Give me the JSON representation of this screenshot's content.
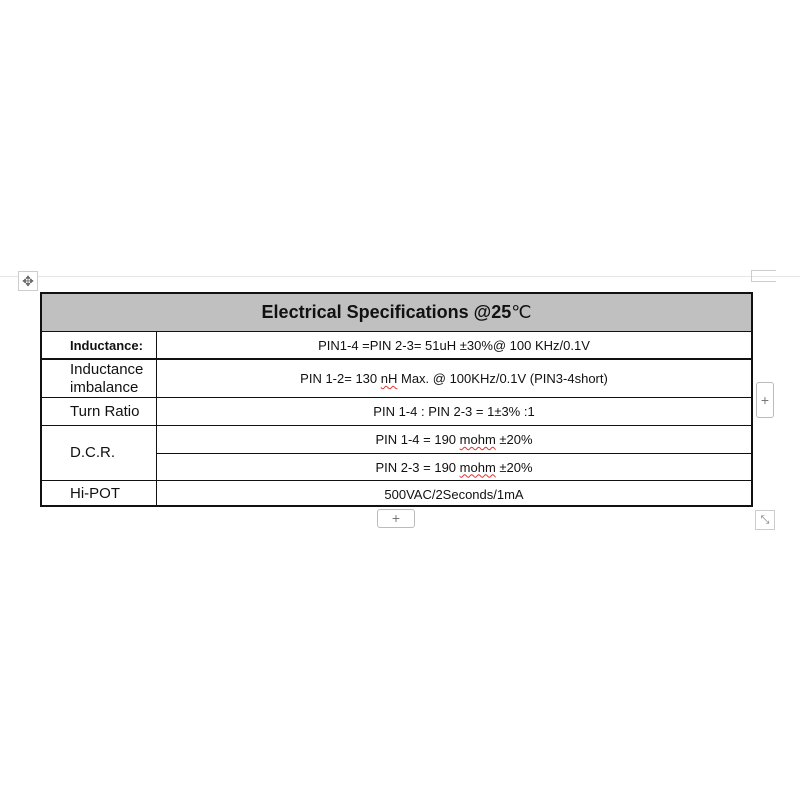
{
  "table": {
    "title": "Electrical Specifications @25",
    "title_unit": "℃",
    "rows": [
      {
        "label": "Inductance:",
        "value": "PIN1-4 =PIN 2-3= 51uH ±30%@ 100 KHz/0.1V"
      },
      {
        "label": "Inductance imbalance",
        "value_pre": "PIN 1-2= 130 ",
        "value_sq": "nH",
        "value_post": " Max. @ 100KHz/0.1V (PIN3-4short)"
      },
      {
        "label": "Turn Ratio",
        "value": "PIN 1-4 : PIN 2-3 = 1±3% :1"
      },
      {
        "label": "D.C.R.",
        "value1_pre": "PIN 1-4 = 190 ",
        "value1_sq": "mohm",
        "value1_post": " ±20%",
        "value2_pre": "PIN 2-3 = 190 ",
        "value2_sq": "mohm",
        "value2_post": " ±20%"
      },
      {
        "label": "Hi-POT",
        "value": "500VAC/2Seconds/1mA"
      }
    ]
  },
  "controls": {
    "add_symbol": "+",
    "move_icon": "move-icon",
    "resize_icon": "resize-icon"
  }
}
